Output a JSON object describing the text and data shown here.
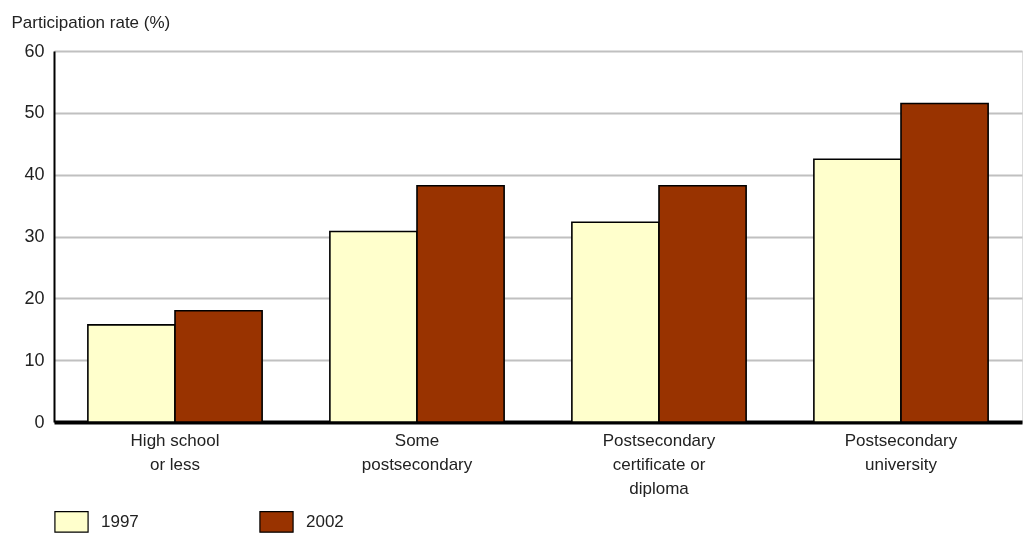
{
  "chart_data": {
    "type": "bar",
    "ylabel": "Participation rate (%)",
    "categories": [
      "High school\nor less",
      "Some\npostsecondary",
      "Postsecondary\ncertificate or\ndiploma",
      "Postsecondary\nuniversity"
    ],
    "series": [
      {
        "name": "1997",
        "color": "#ffffcc",
        "values": [
          15.7,
          30.8,
          32.3,
          42.5
        ]
      },
      {
        "name": "2002",
        "color": "#993300",
        "values": [
          18.0,
          38.2,
          38.2,
          51.5
        ]
      }
    ],
    "ylim": [
      0,
      60
    ],
    "yticks": [
      0,
      10,
      20,
      30,
      40,
      50,
      60
    ],
    "grid": "y",
    "legend": "bottom left"
  }
}
